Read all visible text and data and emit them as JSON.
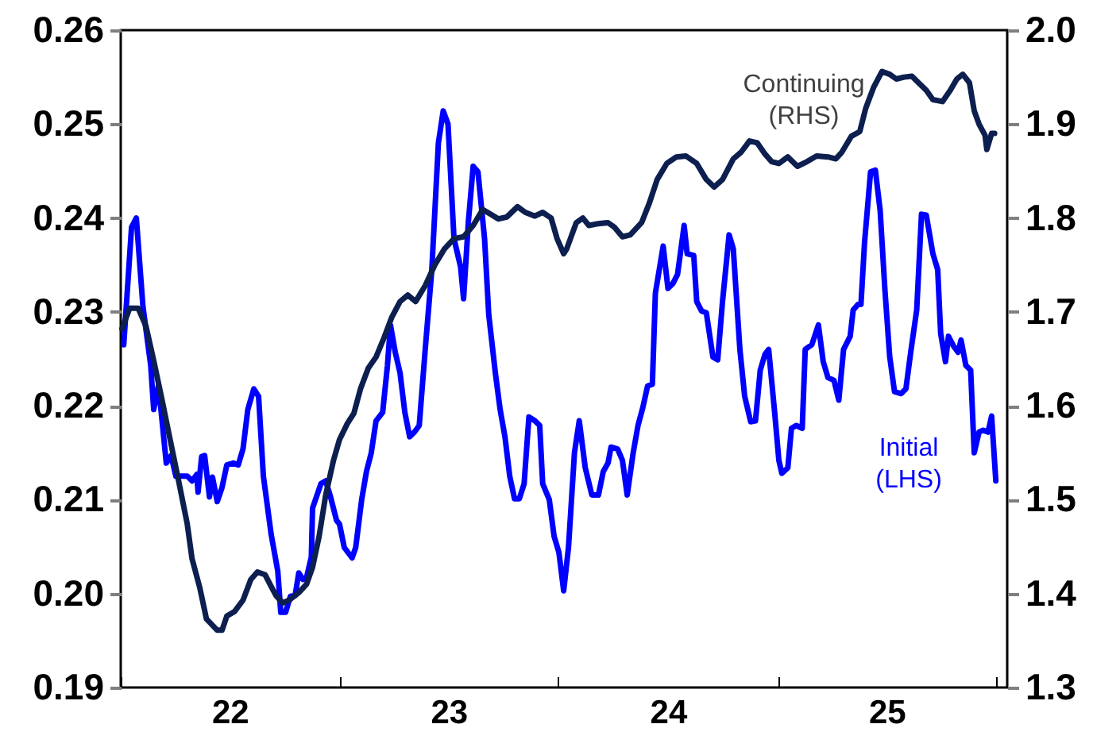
{
  "chart_data": {
    "type": "line",
    "xlim": [
      "2022-01-01",
      "2026-01-19"
    ],
    "xticks": [
      {
        "value": "2022-01-01",
        "label": null
      },
      {
        "value": "2022-07-02",
        "label": "22"
      },
      {
        "value": "2023-01-01",
        "label": null
      },
      {
        "value": "2023-07-02",
        "label": "23"
      },
      {
        "value": "2024-01-01",
        "label": null
      },
      {
        "value": "2024-07-02",
        "label": "24"
      },
      {
        "value": "2025-01-01",
        "label": null
      },
      {
        "value": "2025-07-02",
        "label": "25"
      },
      {
        "value": "2026-01-01",
        "label": null
      }
    ],
    "ylim": [
      0.19,
      0.26
    ],
    "yticks": [
      {
        "value": 0.19,
        "label": "0.19"
      },
      {
        "value": 0.2,
        "label": "0.20"
      },
      {
        "value": 0.21,
        "label": "0.21"
      },
      {
        "value": 0.22,
        "label": "0.22"
      },
      {
        "value": 0.23,
        "label": "0.23"
      },
      {
        "value": 0.24,
        "label": "0.24"
      },
      {
        "value": 0.25,
        "label": "0.25"
      },
      {
        "value": 0.26,
        "label": "0.26"
      }
    ],
    "y2lim": [
      1.3,
      2.0
    ],
    "y2ticks": [
      {
        "value": 1.3,
        "label": "1.3"
      },
      {
        "value": 1.4,
        "label": "1.4"
      },
      {
        "value": 1.5,
        "label": "1.5"
      },
      {
        "value": 1.6,
        "label": "1.6"
      },
      {
        "value": 1.7,
        "label": "1.7"
      },
      {
        "value": 1.8,
        "label": "1.8"
      },
      {
        "value": 1.9,
        "label": "1.9"
      },
      {
        "value": 2.0,
        "label": "2.0"
      }
    ],
    "grid": false,
    "line_style": "solid",
    "marker": "none",
    "series": [
      {
        "name": "Continuing (RHS)",
        "color": "#0d1f4f",
        "axis": "y2",
        "x": [
          "2022-01-03",
          "2022-01-16",
          "2022-01-30",
          "2022-02-12",
          "2022-02-25",
          "2022-03-10",
          "2022-03-26",
          "2022-04-06",
          "2022-04-22",
          "2022-04-30",
          "2022-05-13",
          "2022-05-24",
          "2022-06-11",
          "2022-06-19",
          "2022-06-27",
          "2022-07-10",
          "2022-07-24",
          "2022-08-06",
          "2022-08-17",
          "2022-08-30",
          "2022-09-07",
          "2022-09-17",
          "2022-09-28",
          "2022-10-09",
          "2022-10-25",
          "2022-11-07",
          "2022-11-17",
          "2022-11-28",
          "2022-12-09",
          "2022-12-22",
          "2023-01-01",
          "2023-01-14",
          "2023-01-25",
          "2023-02-05",
          "2023-02-18",
          "2023-03-03",
          "2023-03-16",
          "2023-03-29",
          "2023-04-12",
          "2023-04-25",
          "2023-05-08",
          "2023-05-24",
          "2023-06-09",
          "2023-06-25",
          "2023-07-11",
          "2023-07-27",
          "2023-08-12",
          "2023-08-28",
          "2023-09-10",
          "2023-09-23",
          "2023-10-07",
          "2023-10-25",
          "2023-11-07",
          "2023-11-23",
          "2023-12-06",
          "2023-12-20",
          "2023-12-30",
          "2024-01-10",
          "2024-01-15",
          "2024-01-31",
          "2024-02-11",
          "2024-02-21",
          "2024-03-08",
          "2024-03-24",
          "2024-04-04",
          "2024-04-17",
          "2024-04-30",
          "2024-05-19",
          "2024-06-01",
          "2024-06-14",
          "2024-06-30",
          "2024-07-16",
          "2024-08-01",
          "2024-08-19",
          "2024-09-04",
          "2024-09-17",
          "2024-10-01",
          "2024-10-19",
          "2024-11-01",
          "2024-11-15",
          "2024-11-28",
          "2024-12-11",
          "2024-12-22",
          "2025-01-03",
          "2025-01-18",
          "2025-02-03",
          "2025-02-19",
          "2025-03-07",
          "2025-03-26",
          "2025-04-08",
          "2025-04-18",
          "2025-05-04",
          "2025-05-18",
          "2025-05-28",
          "2025-06-10",
          "2025-06-24",
          "2025-07-07",
          "2025-07-18",
          "2025-07-31",
          "2025-08-13",
          "2025-08-24",
          "2025-09-06",
          "2025-09-17",
          "2025-10-03",
          "2025-10-16",
          "2025-10-27",
          "2025-11-06",
          "2025-11-17",
          "2025-11-25",
          "2025-12-03",
          "2025-12-13",
          "2025-12-16",
          "2025-12-24",
          "2025-12-29"
        ],
        "values": [
          1.682,
          1.704,
          1.704,
          1.685,
          1.648,
          1.609,
          1.559,
          1.525,
          1.474,
          1.437,
          1.406,
          1.373,
          1.361,
          1.361,
          1.376,
          1.381,
          1.393,
          1.415,
          1.423,
          1.42,
          1.41,
          1.398,
          1.39,
          1.393,
          1.401,
          1.41,
          1.428,
          1.461,
          1.505,
          1.542,
          1.564,
          1.581,
          1.592,
          1.618,
          1.64,
          1.652,
          1.672,
          1.694,
          1.711,
          1.718,
          1.711,
          1.728,
          1.75,
          1.767,
          1.778,
          1.78,
          1.792,
          1.809,
          1.804,
          1.799,
          1.801,
          1.812,
          1.806,
          1.802,
          1.806,
          1.8,
          1.778,
          1.762,
          1.767,
          1.795,
          1.8,
          1.792,
          1.794,
          1.795,
          1.79,
          1.78,
          1.782,
          1.795,
          1.816,
          1.841,
          1.858,
          1.865,
          1.866,
          1.858,
          1.841,
          1.833,
          1.841,
          1.863,
          1.87,
          1.882,
          1.88,
          1.868,
          1.86,
          1.858,
          1.865,
          1.855,
          1.86,
          1.866,
          1.865,
          1.863,
          1.87,
          1.887,
          1.892,
          1.917,
          1.939,
          1.956,
          1.953,
          1.948,
          1.95,
          1.951,
          1.944,
          1.936,
          1.926,
          1.924,
          1.936,
          1.948,
          1.953,
          1.944,
          1.914,
          1.9,
          1.888,
          1.873,
          1.89,
          1.89
        ]
      },
      {
        "name": "Initial (LHS)",
        "color": "#0000ff",
        "x": [
          "2022-01-06",
          "2022-01-19",
          "2022-01-27",
          "2022-02-07",
          "2022-02-20",
          "2022-02-25",
          "2022-03-05",
          "2022-03-18",
          "2022-03-26",
          "2022-04-03",
          "2022-04-22",
          "2022-04-30",
          "2022-05-08",
          "2022-05-10",
          "2022-05-16",
          "2022-05-21",
          "2022-05-29",
          "2022-06-03",
          "2022-06-11",
          "2022-06-19",
          "2022-06-27",
          "2022-07-08",
          "2022-07-16",
          "2022-07-24",
          "2022-08-01",
          "2022-08-11",
          "2022-08-19",
          "2022-08-27",
          "2022-09-09",
          "2022-09-20",
          "2022-09-25",
          "2022-10-03",
          "2022-10-11",
          "2022-10-19",
          "2022-10-25",
          "2022-11-01",
          "2022-11-07",
          "2022-11-15",
          "2022-11-17",
          "2022-12-01",
          "2022-12-09",
          "2022-12-17",
          "2022-12-27",
          "2023-01-01",
          "2023-01-09",
          "2023-01-22",
          "2023-01-28",
          "2023-02-07",
          "2023-02-15",
          "2023-02-23",
          "2023-03-03",
          "2023-03-14",
          "2023-03-22",
          "2023-03-27",
          "2023-04-04",
          "2023-04-12",
          "2023-04-20",
          "2023-04-28",
          "2023-05-06",
          "2023-05-14",
          "2023-05-24",
          "2023-06-04",
          "2023-06-15",
          "2023-06-23",
          "2023-07-01",
          "2023-07-11",
          "2023-07-22",
          "2023-07-27",
          "2023-08-04",
          "2023-08-12",
          "2023-08-20",
          "2023-08-31",
          "2023-09-07",
          "2023-09-18",
          "2023-09-26",
          "2023-10-04",
          "2023-10-12",
          "2023-10-20",
          "2023-10-28",
          "2023-11-05",
          "2023-11-13",
          "2023-11-23",
          "2023-12-01",
          "2023-12-06",
          "2023-12-17",
          "2023-12-25",
          "2024-01-02",
          "2024-01-10",
          "2024-01-18",
          "2024-01-28",
          "2024-02-05",
          "2024-02-15",
          "2024-02-26",
          "2024-03-08",
          "2024-03-16",
          "2024-03-24",
          "2024-03-29",
          "2024-04-09",
          "2024-04-17",
          "2024-04-25",
          "2024-05-05",
          "2024-05-13",
          "2024-05-21",
          "2024-05-29",
          "2024-06-06",
          "2024-06-11",
          "2024-06-24",
          "2024-07-02",
          "2024-07-10",
          "2024-07-18",
          "2024-07-29",
          "2024-08-03",
          "2024-08-14",
          "2024-08-19",
          "2024-08-27",
          "2024-09-04",
          "2024-09-15",
          "2024-09-23",
          "2024-10-01",
          "2024-10-12",
          "2024-10-19",
          "2024-10-30",
          "2024-11-07",
          "2024-11-17",
          "2024-11-25",
          "2024-12-03",
          "2024-12-11",
          "2024-12-17",
          "2024-12-27",
          "2025-01-03",
          "2025-01-08",
          "2025-01-18",
          "2025-01-24",
          "2025-02-01",
          "2025-02-11",
          "2025-02-16",
          "2025-02-27",
          "2025-03-10",
          "2025-03-18",
          "2025-03-26",
          "2025-04-05",
          "2025-04-13",
          "2025-04-21",
          "2025-05-02",
          "2025-05-07",
          "2025-05-15",
          "2025-05-20",
          "2025-05-26",
          "2025-06-05",
          "2025-06-13",
          "2025-06-21",
          "2025-06-29",
          "2025-07-07",
          "2025-07-15",
          "2025-07-26",
          "2025-08-03",
          "2025-08-11",
          "2025-08-21",
          "2025-08-29",
          "2025-09-06",
          "2025-09-17",
          "2025-09-25",
          "2025-09-30",
          "2025-10-08",
          "2025-10-13",
          "2025-10-21",
          "2025-10-29",
          "2025-11-03",
          "2025-11-11",
          "2025-11-19",
          "2025-11-25",
          "2025-12-03",
          "2025-12-10",
          "2025-12-18",
          "2025-12-24",
          "2025-12-31"
        ],
        "values": [
          0.2265,
          0.239,
          0.24,
          0.2306,
          0.2243,
          0.2196,
          0.2222,
          0.2139,
          0.2147,
          0.2125,
          0.2125,
          0.212,
          0.2127,
          0.2108,
          0.2146,
          0.2147,
          0.2103,
          0.2124,
          0.2098,
          0.2113,
          0.2137,
          0.2139,
          0.2137,
          0.2154,
          0.2196,
          0.2218,
          0.221,
          0.2125,
          0.2063,
          0.2024,
          0.198,
          0.198,
          0.1997,
          0.1998,
          0.2022,
          0.2015,
          0.2017,
          0.2039,
          0.2091,
          0.2117,
          0.212,
          0.2103,
          0.2078,
          0.2074,
          0.2049,
          0.2038,
          0.2049,
          0.21,
          0.213,
          0.215,
          0.2184,
          0.2193,
          0.2243,
          0.2286,
          0.2257,
          0.2235,
          0.2193,
          0.2167,
          0.2172,
          0.2179,
          0.226,
          0.2345,
          0.248,
          0.2514,
          0.25,
          0.2378,
          0.2348,
          0.2314,
          0.2396,
          0.2455,
          0.2449,
          0.2378,
          0.2297,
          0.2235,
          0.2196,
          0.2167,
          0.2125,
          0.2101,
          0.2101,
          0.2117,
          0.2188,
          0.2184,
          0.2179,
          0.2117,
          0.21,
          0.2061,
          0.2044,
          0.2003,
          0.2049,
          0.215,
          0.2184,
          0.2134,
          0.2105,
          0.2105,
          0.213,
          0.2139,
          0.2156,
          0.2154,
          0.2142,
          0.2105,
          0.215,
          0.2179,
          0.2198,
          0.2221,
          0.2223,
          0.232,
          0.237,
          0.2325,
          0.233,
          0.234,
          0.2392,
          0.2362,
          0.236,
          0.2311,
          0.2301,
          0.2299,
          0.2252,
          0.2249,
          0.2311,
          0.2382,
          0.2367,
          0.226,
          0.221,
          0.2183,
          0.2184,
          0.2238,
          0.2255,
          0.226,
          0.2193,
          0.2142,
          0.2128,
          0.2134,
          0.2176,
          0.2179,
          0.2176,
          0.226,
          0.2265,
          0.2286,
          0.2247,
          0.223,
          0.2227,
          0.2206,
          0.226,
          0.2274,
          0.2302,
          0.2308,
          0.2308,
          0.2374,
          0.2449,
          0.2451,
          0.2408,
          0.2323,
          0.2252,
          0.2215,
          0.2213,
          0.2218,
          0.2257,
          0.2302,
          0.2404,
          0.2403,
          0.2362,
          0.2345,
          0.2277,
          0.2247,
          0.2274,
          0.2264,
          0.2257,
          0.227,
          0.2243,
          0.2238,
          0.215,
          0.2172,
          0.2174,
          0.2172,
          0.2189,
          0.212
        ]
      }
    ]
  }
}
